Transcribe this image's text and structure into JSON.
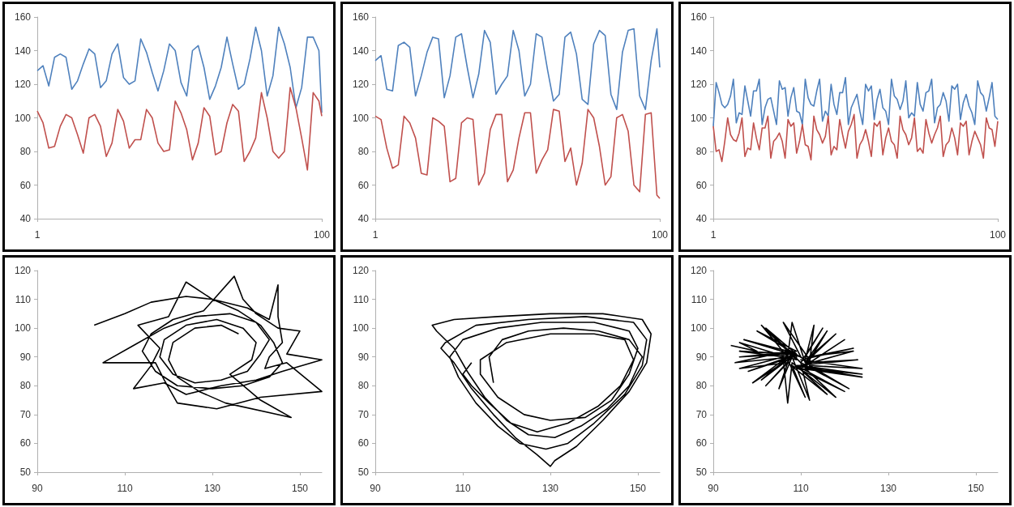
{
  "chart_data": [
    {
      "type": "line",
      "xlim": [
        1,
        100
      ],
      "xticks": [
        1,
        100
      ],
      "ylim": [
        40,
        160
      ],
      "yticks": [
        40,
        60,
        80,
        100,
        120,
        140,
        160
      ],
      "grid": false,
      "x": [
        1,
        3,
        5,
        7,
        9,
        11,
        13,
        15,
        17,
        19,
        21,
        23,
        25,
        27,
        29,
        31,
        33,
        35,
        37,
        39,
        41,
        43,
        45,
        47,
        49,
        51,
        53,
        55,
        57,
        59,
        61,
        63,
        65,
        67,
        69,
        71,
        73,
        75,
        77,
        79,
        81,
        83,
        85,
        87,
        89,
        91,
        93,
        95,
        97,
        99,
        100
      ],
      "series": [
        {
          "color": "#4f81bd",
          "values": [
            128,
            131,
            119,
            136,
            138,
            136,
            117,
            122,
            132,
            141,
            138,
            118,
            122,
            138,
            144,
            124,
            120,
            122,
            147,
            139,
            127,
            116,
            128,
            144,
            140,
            121,
            113,
            140,
            143,
            130,
            111,
            119,
            130,
            148,
            132,
            117,
            120,
            135,
            154,
            140,
            113,
            125,
            154,
            144,
            130,
            106,
            118,
            148,
            148,
            140,
            103
          ]
        },
        {
          "color": "#c0504d",
          "values": [
            104,
            97,
            82,
            83,
            95,
            102,
            100,
            90,
            79,
            100,
            102,
            95,
            77,
            85,
            105,
            98,
            82,
            87,
            87,
            105,
            100,
            85,
            80,
            81,
            110,
            103,
            93,
            75,
            85,
            106,
            101,
            78,
            80,
            97,
            108,
            104,
            74,
            80,
            88,
            115,
            100,
            80,
            76,
            80,
            118,
            106,
            88,
            69,
            115,
            110,
            101
          ]
        }
      ]
    },
    {
      "type": "line",
      "xlim": [
        1,
        100
      ],
      "xticks": [
        1,
        100
      ],
      "ylim": [
        40,
        160
      ],
      "yticks": [
        40,
        60,
        80,
        100,
        120,
        140,
        160
      ],
      "grid": false,
      "x": [
        1,
        3,
        5,
        7,
        9,
        11,
        13,
        15,
        17,
        19,
        21,
        23,
        25,
        27,
        29,
        31,
        33,
        35,
        37,
        39,
        41,
        43,
        45,
        47,
        49,
        51,
        53,
        55,
        57,
        59,
        61,
        63,
        65,
        67,
        69,
        71,
        73,
        75,
        77,
        79,
        81,
        83,
        85,
        87,
        89,
        91,
        93,
        95,
        97,
        99,
        100
      ],
      "series": [
        {
          "color": "#4f81bd",
          "values": [
            134,
            137,
            117,
            116,
            143,
            145,
            142,
            113,
            125,
            139,
            148,
            147,
            112,
            125,
            148,
            150,
            130,
            112,
            126,
            152,
            145,
            114,
            120,
            125,
            152,
            140,
            113,
            120,
            150,
            148,
            128,
            110,
            114,
            148,
            151,
            138,
            111,
            108,
            144,
            152,
            149,
            114,
            105,
            139,
            152,
            153,
            113,
            105,
            134,
            153,
            130
          ]
        },
        {
          "color": "#c0504d",
          "values": [
            101,
            99,
            82,
            70,
            72,
            101,
            97,
            88,
            67,
            66,
            100,
            98,
            95,
            62,
            64,
            97,
            100,
            99,
            60,
            67,
            93,
            102,
            102,
            62,
            69,
            88,
            103,
            103,
            67,
            75,
            81,
            105,
            104,
            74,
            82,
            60,
            73,
            105,
            100,
            83,
            60,
            65,
            100,
            102,
            92,
            60,
            56,
            102,
            103,
            54,
            52
          ]
        }
      ]
    },
    {
      "type": "line",
      "xlim": [
        1,
        100
      ],
      "xticks": [
        1,
        100
      ],
      "ylim": [
        40,
        160
      ],
      "yticks": [
        40,
        60,
        80,
        100,
        120,
        140,
        160
      ],
      "grid": false,
      "x": [
        1,
        2,
        3,
        4,
        5,
        6,
        7,
        8,
        9,
        10,
        11,
        12,
        13,
        14,
        15,
        16,
        17,
        18,
        19,
        20,
        21,
        22,
        23,
        24,
        25,
        26,
        27,
        28,
        29,
        30,
        31,
        32,
        33,
        34,
        35,
        36,
        37,
        38,
        39,
        40,
        41,
        42,
        43,
        44,
        45,
        46,
        47,
        48,
        49,
        50,
        51,
        52,
        53,
        54,
        55,
        56,
        57,
        58,
        59,
        60,
        61,
        62,
        63,
        64,
        65,
        66,
        67,
        68,
        69,
        70,
        71,
        72,
        73,
        74,
        75,
        76,
        77,
        78,
        79,
        80,
        81,
        82,
        83,
        84,
        85,
        86,
        87,
        88,
        89,
        90,
        91,
        92,
        93,
        94,
        95,
        96,
        97,
        98,
        99,
        100
      ],
      "series": [
        {
          "color": "#4f81bd",
          "values": [
            95,
            121,
            115,
            108,
            106,
            108,
            113,
            123,
            97,
            103,
            102,
            119,
            110,
            101,
            116,
            116,
            123,
            96,
            106,
            111,
            112,
            104,
            96,
            122,
            117,
            118,
            101,
            112,
            118,
            104,
            103,
            96,
            123,
            112,
            108,
            107,
            116,
            123,
            98,
            104,
            101,
            120,
            108,
            102,
            115,
            115,
            124,
            96,
            106,
            110,
            114,
            104,
            96,
            120,
            116,
            119,
            99,
            111,
            117,
            106,
            104,
            96,
            123,
            113,
            111,
            105,
            110,
            122,
            100,
            103,
            101,
            121,
            108,
            104,
            115,
            116,
            123,
            97,
            106,
            108,
            115,
            110,
            98,
            119,
            117,
            120,
            99,
            109,
            114,
            107,
            103,
            96,
            122,
            115,
            113,
            104,
            112,
            121,
            101,
            99
          ]
        },
        {
          "color": "#c0504d",
          "values": [
            95,
            80,
            81,
            74,
            86,
            100,
            90,
            87,
            86,
            91,
            100,
            77,
            82,
            81,
            97,
            88,
            81,
            94,
            94,
            101,
            76,
            86,
            88,
            91,
            86,
            76,
            99,
            95,
            97,
            79,
            86,
            96,
            84,
            83,
            75,
            101,
            93,
            90,
            85,
            89,
            101,
            78,
            83,
            81,
            99,
            90,
            82,
            92,
            96,
            102,
            76,
            84,
            87,
            93,
            86,
            77,
            97,
            95,
            98,
            78,
            88,
            94,
            86,
            84,
            76,
            101,
            93,
            90,
            84,
            88,
            100,
            80,
            82,
            79,
            99,
            91,
            85,
            90,
            94,
            101,
            77,
            84,
            86,
            94,
            88,
            78,
            97,
            95,
            98,
            78,
            86,
            92,
            88,
            84,
            76,
            100,
            94,
            93,
            83,
            98
          ]
        }
      ]
    },
    {
      "type": "line",
      "xlim": [
        90,
        155
      ],
      "xticks": [
        90,
        110,
        130,
        150
      ],
      "ylim": [
        50,
        120
      ],
      "yticks": [
        50,
        60,
        70,
        80,
        90,
        100,
        110,
        120
      ],
      "grid": false,
      "series": [
        {
          "color": "#000000",
          "x": [
            103,
            110,
            116,
            124,
            130,
            136,
            141,
            144,
            146,
            143,
            137,
            130,
            122,
            117,
            114,
            116,
            121,
            128,
            135,
            137,
            140,
            145,
            150,
            147,
            155,
            146,
            140,
            132,
            124,
            119,
            112,
            116,
            118,
            113,
            120,
            124,
            130,
            138,
            143,
            145,
            145,
            146,
            143,
            142,
            147,
            155,
            141,
            131,
            122,
            119,
            117,
            105,
            112,
            119,
            126,
            134,
            140,
            143,
            141,
            138,
            132,
            126,
            121,
            118,
            119,
            124,
            131,
            137,
            140,
            139,
            134,
            141,
            148,
            133,
            127,
            122,
            120,
            121,
            126,
            132,
            136
          ],
          "values": [
            101,
            105,
            109,
            111,
            110,
            106,
            101,
            95,
            88,
            83,
            80,
            79,
            80,
            85,
            92,
            98,
            103,
            106,
            118,
            110,
            105,
            100,
            99,
            91,
            89,
            85,
            82,
            80,
            77,
            81,
            79,
            87,
            93,
            101,
            104,
            116,
            110,
            107,
            103,
            115,
            104,
            95,
            90,
            86,
            88,
            78,
            76,
            72,
            74,
            82,
            88,
            88,
            94,
            100,
            104,
            105,
            102,
            96,
            91,
            85,
            82,
            81,
            84,
            90,
            96,
            101,
            103,
            100,
            95,
            89,
            84,
            75,
            69,
            74,
            78,
            83,
            89,
            95,
            100,
            101,
            98
          ]
        }
      ]
    },
    {
      "type": "line",
      "xlim": [
        90,
        155
      ],
      "xticks": [
        90,
        110,
        130,
        150
      ],
      "ylim": [
        50,
        120
      ],
      "yticks": [
        50,
        60,
        70,
        80,
        90,
        100,
        110,
        120
      ],
      "grid": false,
      "series": [
        {
          "color": "#000000",
          "x": [
            117,
            116,
            119,
            125,
            133,
            141,
            148,
            151,
            148,
            143,
            137,
            131,
            125,
            120,
            115,
            111,
            108,
            104,
            103,
            108,
            118,
            130,
            142,
            151,
            153,
            152,
            148,
            142,
            136,
            131,
            130,
            127,
            122,
            117,
            112,
            108,
            105,
            106,
            113,
            125,
            138,
            149,
            152,
            151,
            147,
            140,
            134,
            129,
            123,
            118,
            113,
            109,
            107,
            110,
            118,
            128,
            140,
            148,
            150,
            148,
            144,
            138,
            130,
            124,
            118,
            114,
            114,
            120,
            130,
            140,
            147,
            149,
            146,
            141,
            134,
            127,
            121,
            116,
            112,
            110,
            112
          ],
          "values": [
            81,
            90,
            96,
            99,
            100,
            99,
            96,
            90,
            80,
            72,
            66,
            62,
            63,
            68,
            76,
            85,
            93,
            99,
            101,
            103,
            104,
            105,
            105,
            103,
            98,
            88,
            78,
            68,
            59,
            54,
            52,
            56,
            62,
            70,
            79,
            88,
            93,
            95,
            101,
            103,
            104,
            102,
            96,
            87,
            77,
            67,
            60,
            58,
            60,
            66,
            74,
            83,
            90,
            96,
            100,
            102,
            102,
            99,
            93,
            84,
            75,
            69,
            68,
            70,
            76,
            84,
            89,
            95,
            98,
            98,
            96,
            89,
            80,
            73,
            67,
            64,
            67,
            74,
            80,
            84,
            88
          ]
        }
      ]
    },
    {
      "type": "line",
      "xlim": [
        90,
        155
      ],
      "xticks": [
        90,
        110,
        130,
        150
      ],
      "ylim": [
        50,
        120
      ],
      "yticks": [
        50,
        60,
        70,
        80,
        90,
        100,
        110,
        120
      ],
      "grid": false,
      "series": [
        {
          "color": "#000000",
          "x": [
            94,
            100,
            96,
            109,
            101,
            107,
            108,
            111,
            118,
            112,
            122,
            110,
            124,
            112,
            121,
            110,
            112,
            108,
            102,
            107,
            96,
            106,
            96,
            109,
            102,
            110,
            115,
            111,
            122,
            110,
            124,
            111,
            118,
            108,
            107,
            106,
            99,
            108,
            95,
            107,
            97,
            110,
            106,
            112,
            116,
            111,
            123,
            109,
            120,
            108,
            111,
            107,
            101,
            108,
            96,
            109,
            100,
            111,
            113,
            112,
            120,
            110,
            124,
            109,
            116,
            107,
            105,
            108,
            98,
            109,
            109
          ],
          "values": [
            94,
            92,
            95,
            89,
            101,
            90,
            102,
            88,
            98,
            90,
            93,
            89,
            86,
            87,
            79,
            88,
            75,
            90,
            80,
            88,
            86,
            90,
            92,
            91,
            100,
            88,
            100,
            90,
            92,
            87,
            84,
            86,
            76,
            88,
            74,
            89,
            81,
            90,
            88,
            92,
            96,
            90,
            102,
            89,
            99,
            88,
            89,
            87,
            78,
            87,
            76,
            89,
            82,
            91,
            90,
            92,
            99,
            89,
            101,
            88,
            96,
            86,
            83,
            87,
            77,
            88,
            79,
            90,
            85,
            91,
            89
          ]
        }
      ]
    }
  ]
}
